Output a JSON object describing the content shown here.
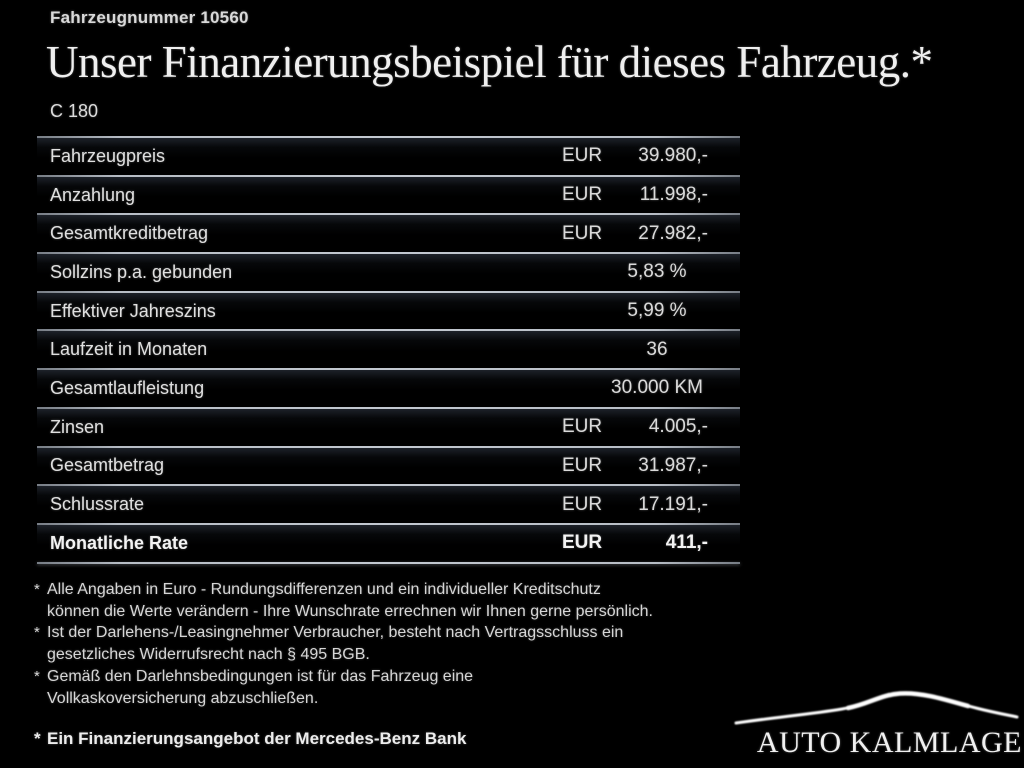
{
  "header": {
    "vehicle_number": "Fahrzeugnummer 10560",
    "title": "Unser Finanzierungsbeispiel für dieses Fahrzeug.*",
    "model": "C 180"
  },
  "table": {
    "rows": [
      {
        "label": "Fahrzeugpreis",
        "currency": "EUR",
        "value": "39.980,-",
        "bold": false
      },
      {
        "label": "Anzahlung",
        "currency": "EUR",
        "value": "11.998,-",
        "bold": false
      },
      {
        "label": "Gesamtkreditbetrag",
        "currency": "EUR",
        "value": "27.982,-",
        "bold": false
      },
      {
        "label": "Sollzins p.a. gebunden",
        "currency": "",
        "value": "5,83 %",
        "bold": false
      },
      {
        "label": "Effektiver Jahreszins",
        "currency": "",
        "value": "5,99 %",
        "bold": false
      },
      {
        "label": "Laufzeit in Monaten",
        "currency": "",
        "value": "36",
        "bold": false
      },
      {
        "label": "Gesamtlaufleistung",
        "currency": "",
        "value": "30.000 KM",
        "bold": false
      },
      {
        "label": "Zinsen",
        "currency": "EUR",
        "value": "4.005,-",
        "bold": false
      },
      {
        "label": "Gesamtbetrag",
        "currency": "EUR",
        "value": "31.987,-",
        "bold": false
      },
      {
        "label": "Schlussrate",
        "currency": "EUR",
        "value": "17.191,-",
        "bold": false
      },
      {
        "label": "Monatliche Rate",
        "currency": "EUR",
        "value": "411,-",
        "bold": true
      }
    ]
  },
  "footnotes": {
    "items": [
      {
        "marker": "*",
        "text": "Alle Angaben in Euro - Rundungsdifferenzen und ein individueller Kreditschutz\nkönnen die Werte verändern - Ihre Wunschrate errechnen wir Ihnen gerne persönlich."
      },
      {
        "marker": "*",
        "text": "Ist der Darlehens-/Leasingnehmer Verbraucher, besteht nach Vertragsschluss ein\ngesetzliches Widerrufsrecht nach § 495 BGB."
      },
      {
        "marker": "*",
        "text": "Gemäß den Darlehnsbedingungen ist für das Fahrzeug eine\nVollkaskoversicherung abzuschließen."
      }
    ],
    "financing_offer": {
      "marker": "*",
      "text": "Ein Finanzierungsangebot der Mercedes-Benz Bank"
    }
  },
  "footer": {
    "dealer_name": "AUTO KALMLAGE",
    "logo_icon": "car-silhouette-icon"
  },
  "colors": {
    "background": "#000000",
    "text": "#e2e2e2",
    "divider": "#b7bdc5"
  }
}
